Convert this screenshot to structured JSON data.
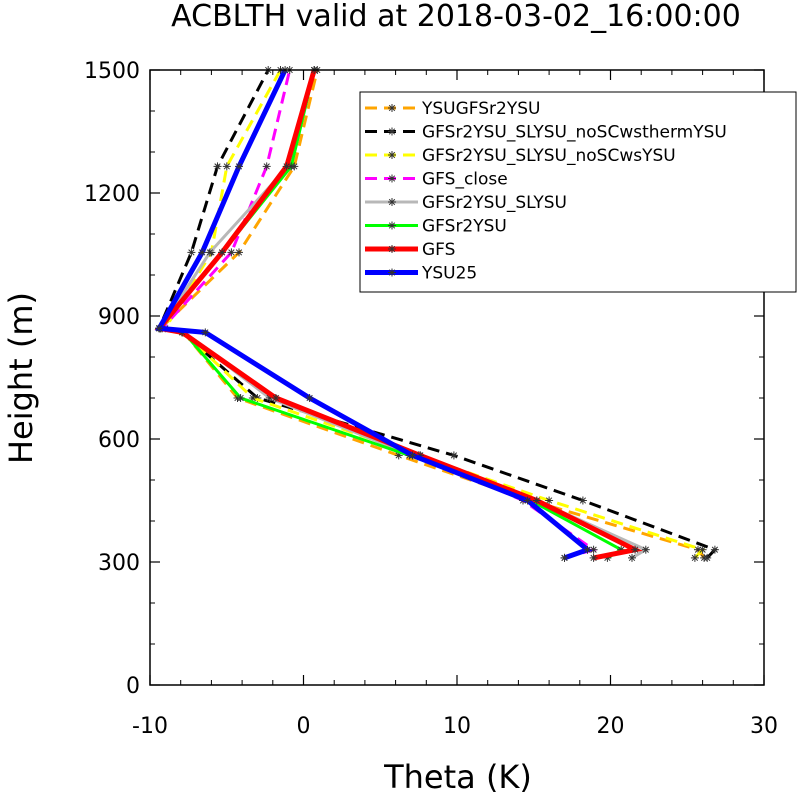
{
  "chart_data": {
    "type": "line",
    "title": "ACBLTH valid at 2018-03-02_16:00:00",
    "xlabel": "Theta (K)",
    "ylabel": "Height (m)",
    "xlim": [
      -10,
      30
    ],
    "ylim": [
      0,
      1500
    ],
    "xticks": [
      -10,
      0,
      10,
      20,
      30
    ],
    "yticks": [
      0,
      300,
      600,
      900,
      1200,
      1500
    ],
    "xtick_labels": [
      "-10",
      "0",
      "10",
      "20",
      "30"
    ],
    "ytick_labels": [
      "0",
      "300",
      "600",
      "900",
      "1200",
      "1500"
    ],
    "legend_position": "top-right",
    "series": [
      {
        "name": "YSUGFSr2YSU",
        "color": "#FFA500",
        "dash": "dash",
        "width": 3,
        "x": [
          26.1,
          25.7,
          14.8,
          6.2,
          -4.3,
          -7.8,
          -9.3,
          -4.2,
          -0.6,
          0.9
        ],
        "y": [
          310,
          330,
          450,
          560,
          700,
          860,
          870,
          1055,
          1265,
          1500
        ]
      },
      {
        "name": "GFSr2YSU_SLYSU_noSCwsthermYSU",
        "color": "#000000",
        "dash": "dash",
        "width": 3,
        "x": [
          26.3,
          26.8,
          18.2,
          9.8,
          -3.0,
          -7.9,
          -9.4,
          -7.3,
          -5.6,
          -2.3
        ],
        "y": [
          310,
          330,
          450,
          560,
          700,
          860,
          870,
          1055,
          1265,
          1500
        ]
      },
      {
        "name": "GFSr2YSU_SLYSU_noSCwsYSU",
        "color": "#FFFF00",
        "dash": "dash",
        "width": 3,
        "x": [
          25.5,
          26.0,
          16.0,
          7.5,
          -3.3,
          -7.8,
          -9.0,
          -6.0,
          -5.0,
          -1.5
        ],
        "y": [
          310,
          330,
          450,
          560,
          700,
          860,
          870,
          1055,
          1265,
          1500
        ]
      },
      {
        "name": "GFS_close",
        "color": "#FF00FF",
        "dash": "dash",
        "width": 3,
        "x": [
          17.0,
          18.9,
          14.3,
          7.6,
          -1.9,
          -7.9,
          -9.2,
          -4.7,
          -2.4,
          -0.9
        ],
        "y": [
          310,
          330,
          450,
          560,
          700,
          860,
          870,
          1055,
          1265,
          1500
        ]
      },
      {
        "name": "GFSr2YSU_SLYSU",
        "color": "#B8B8B8",
        "dash": "solid",
        "width": 3,
        "x": [
          21.4,
          22.3,
          15.2,
          7.1,
          -2.2,
          -7.8,
          -9.3,
          -6.1,
          -1.0,
          0.7
        ],
        "y": [
          310,
          330,
          450,
          560,
          700,
          860,
          870,
          1055,
          1265,
          1500
        ]
      },
      {
        "name": "GFSr2YSU",
        "color": "#00FF00",
        "dash": "solid",
        "width": 3,
        "x": [
          19.8,
          20.7,
          14.8,
          6.9,
          -4.1,
          -7.8,
          -9.3,
          -5.3,
          -0.8,
          0.7
        ],
        "y": [
          310,
          330,
          450,
          560,
          700,
          860,
          870,
          1055,
          1265,
          1500
        ]
      },
      {
        "name": "GFS",
        "color": "#FF0000",
        "dash": "solid",
        "width": 5,
        "x": [
          18.9,
          21.6,
          15.2,
          7.6,
          -1.8,
          -7.9,
          -9.4,
          -5.3,
          -1.1,
          0.7
        ],
        "y": [
          310,
          330,
          450,
          560,
          700,
          860,
          870,
          1055,
          1265,
          1500
        ]
      },
      {
        "name": "YSU25",
        "color": "#0000FF",
        "dash": "solid",
        "width": 5,
        "x": [
          17.0,
          18.5,
          14.6,
          7.1,
          0.4,
          -6.4,
          -9.4,
          -6.6,
          -4.2,
          -1.2
        ],
        "y": [
          310,
          330,
          450,
          560,
          700,
          860,
          870,
          1055,
          1265,
          1500
        ]
      }
    ]
  }
}
